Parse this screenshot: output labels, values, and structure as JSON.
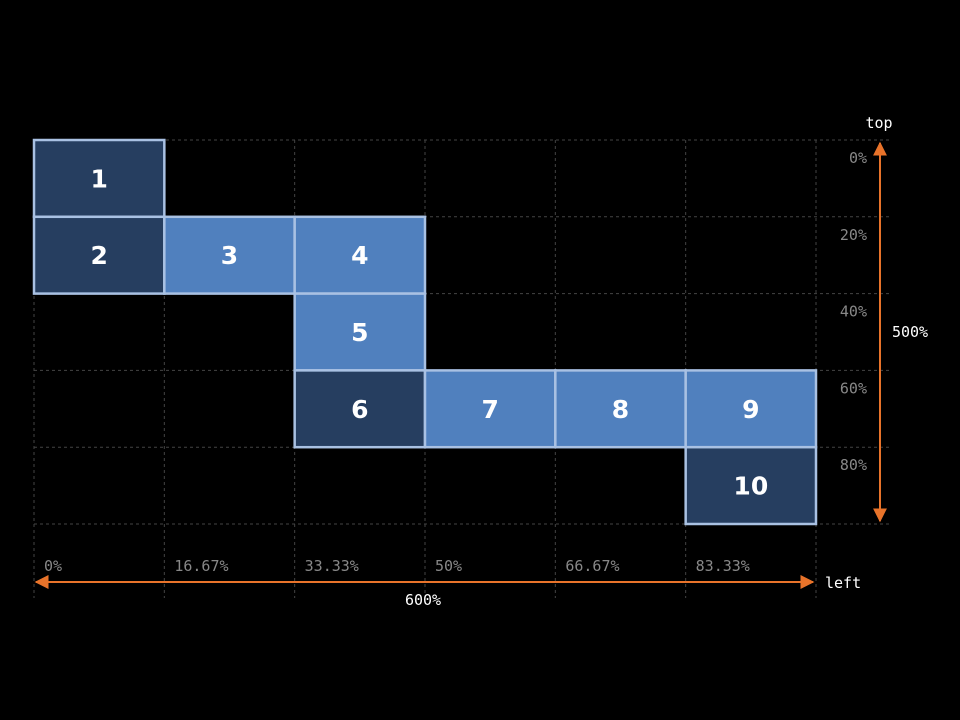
{
  "colors": {
    "background": "#000000",
    "tile_dark": "#263e60",
    "tile_light": "#5080be",
    "tile_border": "#a9c1e3",
    "guide_line": "#444444",
    "tick_text": "#888888",
    "axis_arrow": "#e8732a",
    "axis_text": "#ffffff"
  },
  "axes": {
    "top": {
      "label": "top",
      "span_label": "500%",
      "ticks": [
        "0%",
        "20%",
        "40%",
        "60%",
        "80%"
      ]
    },
    "left": {
      "label": "left",
      "span_label": "600%",
      "ticks": [
        "0%",
        "16.67%",
        "33.33%",
        "50%",
        "66.67%",
        "83.33%"
      ]
    }
  },
  "grid": {
    "columns": 6,
    "rows": 5
  },
  "tiles": [
    {
      "label": "1",
      "col": 0,
      "row": 0,
      "variant": "dark"
    },
    {
      "label": "2",
      "col": 0,
      "row": 1,
      "variant": "dark"
    },
    {
      "label": "3",
      "col": 1,
      "row": 1,
      "variant": "light"
    },
    {
      "label": "4",
      "col": 2,
      "row": 1,
      "variant": "light"
    },
    {
      "label": "5",
      "col": 2,
      "row": 2,
      "variant": "light"
    },
    {
      "label": "6",
      "col": 2,
      "row": 3,
      "variant": "dark"
    },
    {
      "label": "7",
      "col": 3,
      "row": 3,
      "variant": "light"
    },
    {
      "label": "8",
      "col": 4,
      "row": 3,
      "variant": "light"
    },
    {
      "label": "9",
      "col": 5,
      "row": 3,
      "variant": "light"
    },
    {
      "label": "10",
      "col": 5,
      "row": 4,
      "variant": "dark"
    }
  ]
}
